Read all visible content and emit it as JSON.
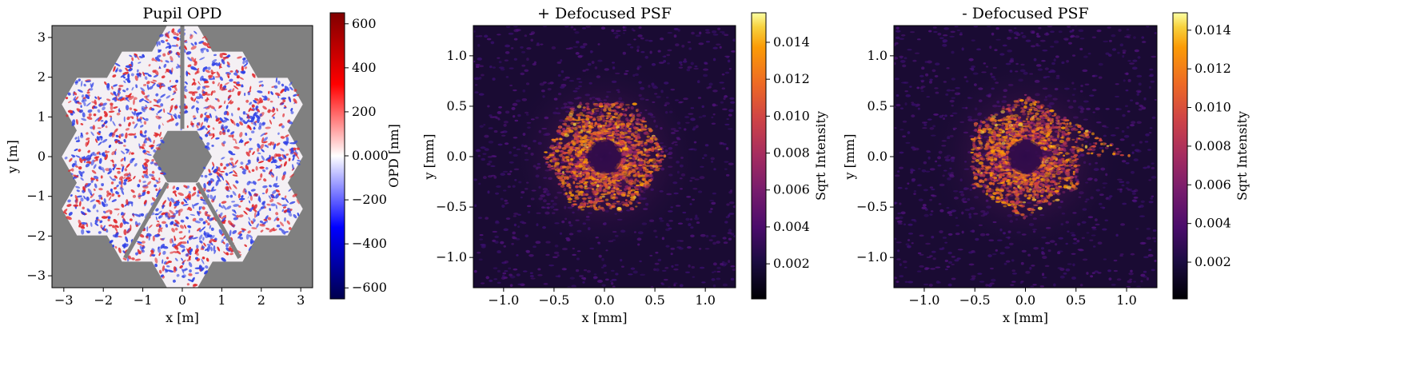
{
  "chart_data": [
    {
      "type": "heatmap",
      "title": "Pupil OPD",
      "xlabel": "x [m]",
      "ylabel": "y [m]",
      "xlim": [
        -3.3,
        3.3
      ],
      "ylim": [
        -3.3,
        3.3
      ],
      "xticks": [
        -3,
        -2,
        -1,
        0,
        1,
        2,
        3
      ],
      "yticks": [
        -3,
        -2,
        -1,
        0,
        1,
        2,
        3
      ],
      "colorbar": {
        "label": "OPD [nm]",
        "colormap": "seismic",
        "range": [
          -650,
          650
        ],
        "ticks": [
          -600,
          -400,
          -200,
          0,
          200,
          400,
          600
        ]
      },
      "background_color": "#808080"
    },
    {
      "type": "heatmap",
      "title": "+ Defocused PSF",
      "xlabel": "x [mm]",
      "ylabel": "y [mm]",
      "xlim": [
        -1.3,
        1.3
      ],
      "ylim": [
        -1.3,
        1.3
      ],
      "xticks": [
        -1.0,
        -0.5,
        0.0,
        0.5,
        1.0
      ],
      "yticks": [
        -1.0,
        -0.5,
        0.0,
        0.5,
        1.0
      ],
      "colorbar": {
        "label": "Sqrt Intensity",
        "colormap": "inferno",
        "range": [
          0.0001,
          0.0156
        ],
        "ticks": [
          0.002,
          0.004,
          0.006,
          0.008,
          0.01,
          0.012,
          0.014
        ]
      }
    },
    {
      "type": "heatmap",
      "title": "- Defocused PSF",
      "xlabel": "x [mm]",
      "ylabel": "y [mm]",
      "xlim": [
        -1.3,
        1.3
      ],
      "ylim": [
        -1.3,
        1.3
      ],
      "xticks": [
        -1.0,
        -0.5,
        0.0,
        0.5,
        1.0
      ],
      "yticks": [
        -1.0,
        -0.5,
        0.0,
        0.5,
        1.0
      ],
      "colorbar": {
        "label": "Sqrt Intensity",
        "colormap": "inferno",
        "range": [
          0.0001,
          0.0149
        ],
        "ticks": [
          0.002,
          0.004,
          0.006,
          0.008,
          0.01,
          0.012,
          0.014
        ]
      }
    }
  ]
}
